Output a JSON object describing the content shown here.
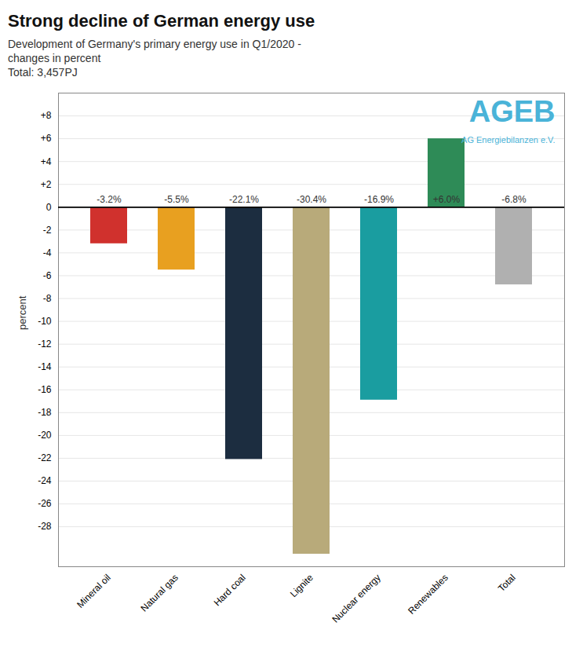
{
  "chart_data": {
    "type": "bar",
    "title": "Strong decline of German energy use",
    "subtitle": [
      "Development of Germany's primary energy use in Q1/2020 -",
      "changes in percent",
      "Total: 3,457PJ"
    ],
    "ylabel": "percent",
    "categories": [
      "Mineral oil",
      "Natural gas",
      "Hard coal",
      "Lignite",
      "Nuclear energy",
      "Renewables",
      "Total"
    ],
    "values": [
      -3.2,
      -5.5,
      -22.1,
      -30.4,
      -16.9,
      6.0,
      -6.8
    ],
    "value_labels": [
      "-3.2%",
      "-5.5%",
      "-22.1%",
      "-30.4%",
      "-16.9%",
      "+6.0%",
      "-6.8%"
    ],
    "data_labels": true,
    "colors": [
      "#d0312d",
      "#e8a020",
      "#1c2d40",
      "#b8aa7a",
      "#1a9da0",
      "#2e8b57",
      "#b0b0b0"
    ],
    "ylim": [
      -31.5,
      10
    ],
    "yticks": [
      {
        "value": 8,
        "label": "+8"
      },
      {
        "value": 6,
        "label": "+6"
      },
      {
        "value": 4,
        "label": "+4"
      },
      {
        "value": 2,
        "label": "+2"
      },
      0,
      -2,
      -4,
      -6,
      -8,
      -10,
      -12,
      -14,
      -16,
      -18,
      -20,
      -22,
      -24,
      -26,
      -28
    ],
    "grid": true,
    "annotations": [
      {
        "text": "AGEB",
        "color": "#4ab3d8"
      },
      {
        "text": "AG Energiebilanzen e.V.",
        "color": "#4ab3d8"
      }
    ]
  }
}
